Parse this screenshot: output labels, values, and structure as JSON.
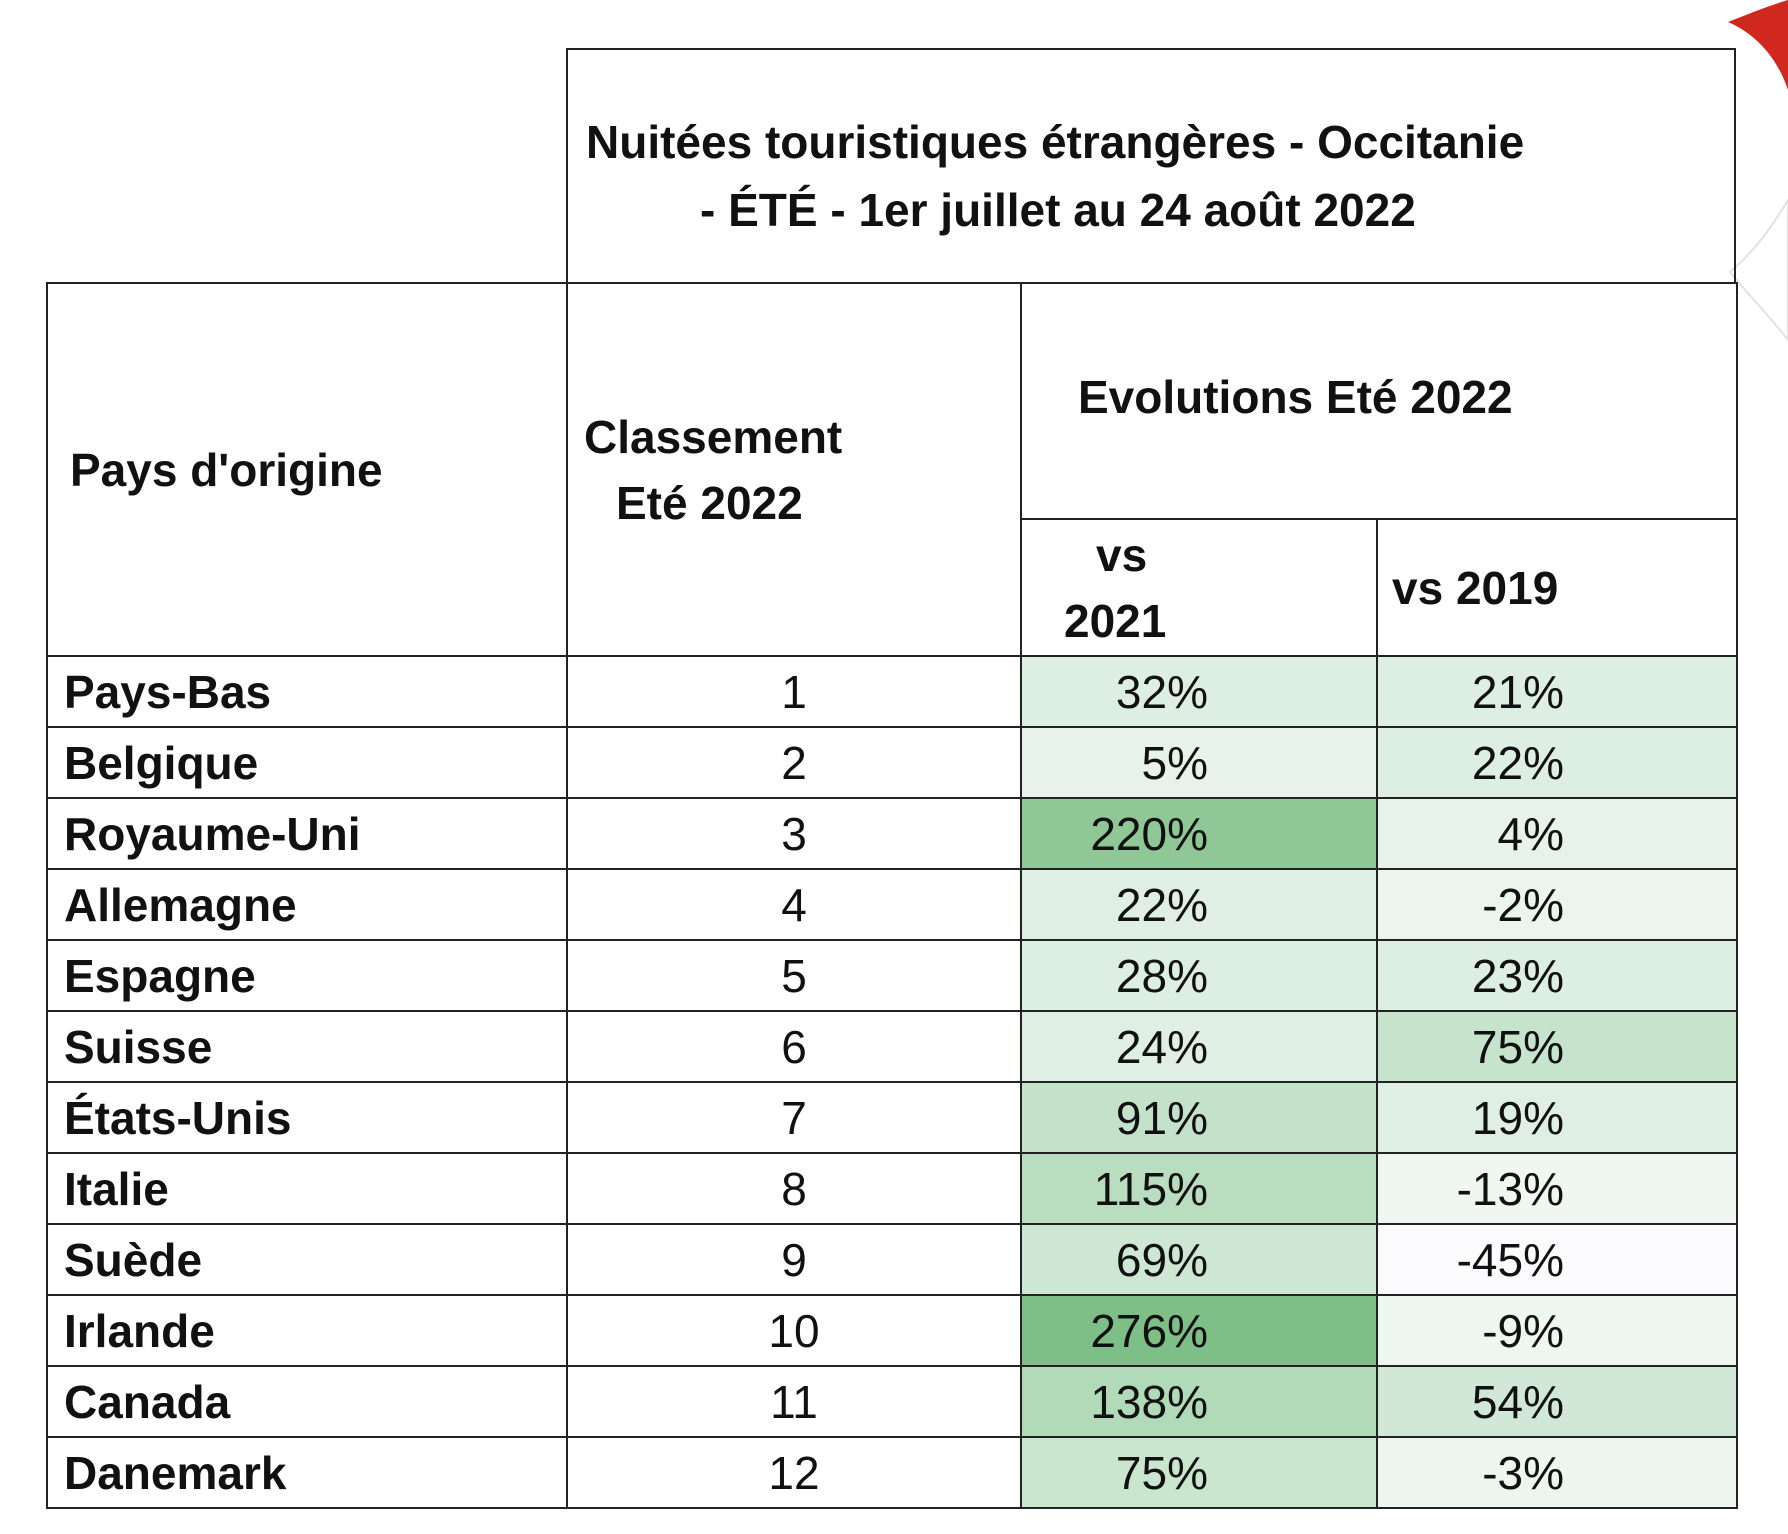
{
  "title": {
    "line1": "Nuitées touristiques étrangères - Occitanie",
    "line2": "- ÉTÉ - 1er juillet au 24 août 2022"
  },
  "headers": {
    "country": "Pays d'origine",
    "rank_line1": "Classement",
    "rank_line2": "Eté 2022",
    "evolutions": "Evolutions Eté 2022",
    "vs2021_line1": "vs",
    "vs2021_line2": "2021",
    "vs2019": "vs 2019"
  },
  "rows": [
    {
      "country": "Pays-Bas",
      "rank": "1",
      "vs2021": "32%",
      "vs2019": "21%",
      "c21": "#ddeee2",
      "c19": "#ddeee2"
    },
    {
      "country": "Belgique",
      "rank": "2",
      "vs2021": "5%",
      "vs2019": "22%",
      "c21": "#e7f3ea",
      "c19": "#ddeee2"
    },
    {
      "country": "Royaume-Uni",
      "rank": "3",
      "vs2021": "220%",
      "vs2019": "4%",
      "c21": "#8fc896",
      "c19": "#e7f3ea"
    },
    {
      "country": "Allemagne",
      "rank": "4",
      "vs2021": "22%",
      "vs2019": "-2%",
      "c21": "#e0efe4",
      "c19": "#ebf5ed"
    },
    {
      "country": "Espagne",
      "rank": "5",
      "vs2021": "28%",
      "vs2019": "23%",
      "c21": "#ddeee2",
      "c19": "#ddeee2"
    },
    {
      "country": "Suisse",
      "rank": "6",
      "vs2021": "24%",
      "vs2019": "75%",
      "c21": "#dfefe3",
      "c19": "#c6e3cc"
    },
    {
      "country": "États-Unis",
      "rank": "7",
      "vs2021": "91%",
      "vs2019": "19%",
      "c21": "#c4e2ca",
      "c19": "#dfefe3"
    },
    {
      "country": "Italie",
      "rank": "8",
      "vs2021": "115%",
      "vs2019": "-13%",
      "c21": "#b8ddbf",
      "c19": "#f0f7f1"
    },
    {
      "country": "Suède",
      "rank": "9",
      "vs2021": "69%",
      "vs2019": "-45%",
      "c21": "#cde7d2",
      "c19": "#fbfbfd"
    },
    {
      "country": "Irlande",
      "rank": "10",
      "vs2021": "276%",
      "vs2019": "-9%",
      "c21": "#7dbf86",
      "c19": "#edf6ef"
    },
    {
      "country": "Canada",
      "rank": "11",
      "vs2021": "138%",
      "vs2019": "54%",
      "c21": "#b1dab9",
      "c19": "#d0e8d5"
    },
    {
      "country": "Danemark",
      "rank": "12",
      "vs2021": "75%",
      "vs2019": "-3%",
      "c21": "#cae6cf",
      "c19": "#ecf5ee"
    }
  ]
}
